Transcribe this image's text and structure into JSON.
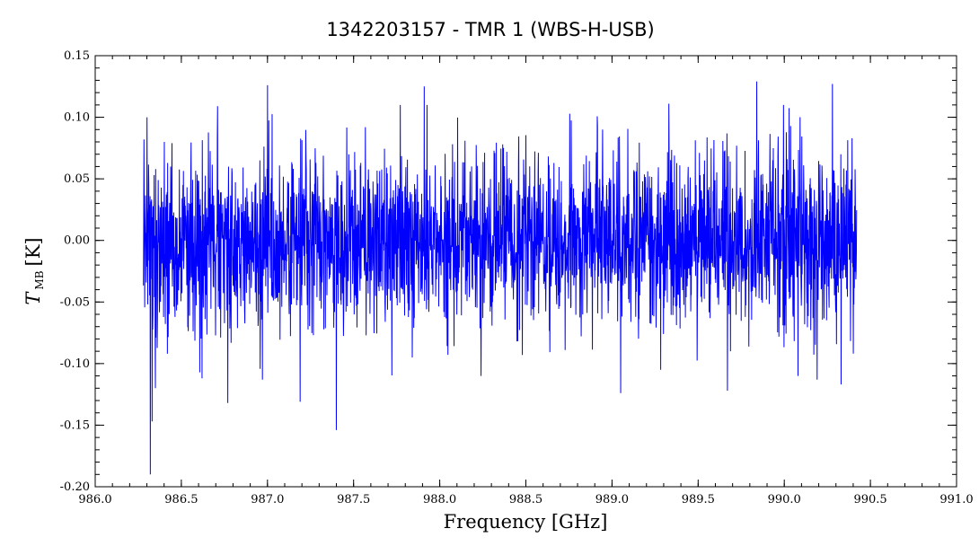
{
  "chart_data": {
    "type": "line",
    "title": "1342203157 - TMR 1 (WBS-H-USB)",
    "xlabel": "Frequency [GHz]",
    "ylabel_main": "T",
    "ylabel_sub": "MB",
    "ylabel_unit": "[K]",
    "xlim": [
      986.0,
      991.0
    ],
    "ylim": [
      -0.2,
      0.15
    ],
    "xticks": [
      986.0,
      986.5,
      987.0,
      987.5,
      988.0,
      988.5,
      989.0,
      989.5,
      990.0,
      990.5,
      991.0
    ],
    "xtick_labels": [
      "986.0",
      "986.5",
      "987.0",
      "987.5",
      "988.0",
      "988.5",
      "989.0",
      "989.5",
      "990.0",
      "990.5",
      "991.0"
    ],
    "yticks": [
      -0.2,
      -0.15,
      -0.1,
      -0.05,
      0.0,
      0.05,
      0.1,
      0.15
    ],
    "ytick_labels": [
      "-0.20",
      "-0.15",
      "-0.10",
      "-0.05",
      "0.00",
      "0.05",
      "0.10",
      "0.15"
    ],
    "grid": false,
    "line_color": "#0000ff",
    "series": [
      {
        "x_range": [
          986.28,
          990.42
        ],
        "baseline": 0.0,
        "rms": 0.035,
        "peaks": [
          {
            "x": 986.32,
            "y": -0.19
          },
          {
            "x": 986.33,
            "y": -0.147
          },
          {
            "x": 986.35,
            "y": -0.12
          },
          {
            "x": 986.3,
            "y": 0.1
          },
          {
            "x": 986.62,
            "y": -0.112
          },
          {
            "x": 986.71,
            "y": 0.109
          },
          {
            "x": 986.77,
            "y": -0.132
          },
          {
            "x": 986.97,
            "y": -0.113
          },
          {
            "x": 987.0,
            "y": 0.126
          },
          {
            "x": 987.19,
            "y": -0.131
          },
          {
            "x": 987.4,
            "y": -0.154
          },
          {
            "x": 987.84,
            "y": -0.095
          },
          {
            "x": 987.91,
            "y": 0.125
          },
          {
            "x": 988.48,
            "y": -0.093
          },
          {
            "x": 989.05,
            "y": -0.124
          },
          {
            "x": 989.33,
            "y": 0.111
          },
          {
            "x": 989.67,
            "y": -0.122
          },
          {
            "x": 989.84,
            "y": 0.129
          },
          {
            "x": 990.19,
            "y": -0.113
          },
          {
            "x": 990.28,
            "y": 0.127
          },
          {
            "x": 990.33,
            "y": -0.117
          }
        ]
      }
    ]
  }
}
